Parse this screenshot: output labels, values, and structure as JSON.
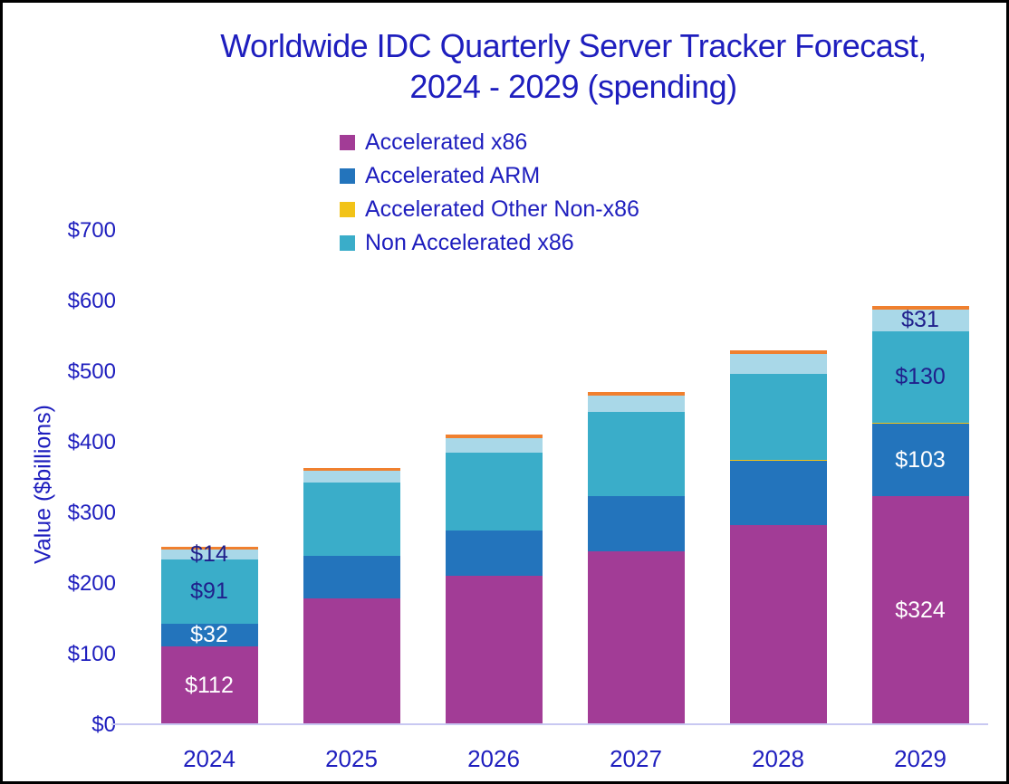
{
  "title": {
    "line1": "Worldwide IDC Quarterly Server Tracker Forecast,",
    "line2": "2024 - 2029 (spending)"
  },
  "colors": {
    "title_text": "#1E1EBE",
    "axis_text": "#1E1EBE",
    "in_bar_dark_label": "#20208C",
    "in_bar_light_label": "#FFFFFF",
    "axis_line": "#C8C8F2",
    "frame_border": "#000000",
    "background": "#FFFFFF"
  },
  "chart_data": {
    "type": "bar",
    "stacked": true,
    "title": "Worldwide IDC Quarterly Server Tracker Forecast, 2024 - 2029 (spending)",
    "xlabel": "",
    "ylabel": "Value ($billions)",
    "ylim": [
      0,
      700
    ],
    "y_ticks": [
      "$0",
      "$100",
      "$200",
      "$300",
      "$400",
      "$500",
      "$600",
      "$700"
    ],
    "grid": false,
    "legend_position": "top-left-under-title",
    "categories": [
      "2024",
      "2025",
      "2026",
      "2027",
      "2028",
      "2029"
    ],
    "legend": [
      {
        "label": "Accelerated x86",
        "color": "#A23C96"
      },
      {
        "label": "Accelerated ARM",
        "color": "#2374BC"
      },
      {
        "label": "Accelerated Other Non-x86",
        "color": "#F2C318"
      },
      {
        "label": "Non Accelerated x86",
        "color": "#3AADC9"
      }
    ],
    "series": [
      {
        "name": "Accelerated x86",
        "color": "#A23C96",
        "values": [
          112,
          180,
          211,
          246,
          283,
          324
        ],
        "data_labels": [
          "$112",
          null,
          null,
          null,
          null,
          "$324"
        ],
        "label_color": "#FFFFFF"
      },
      {
        "name": "Accelerated ARM",
        "color": "#2374BC",
        "values": [
          32,
          60,
          65,
          79,
          91,
          103
        ],
        "data_labels": [
          "$32",
          null,
          null,
          null,
          null,
          "$103"
        ],
        "label_color": "#FFFFFF"
      },
      {
        "name": "Accelerated Other Non-x86",
        "color": "#F2C318",
        "values": [
          0,
          0,
          0,
          0,
          2,
          1
        ],
        "data_labels": [
          null,
          null,
          null,
          null,
          null,
          null
        ],
        "label_color": "#FFFFFF"
      },
      {
        "name": "Non Accelerated x86",
        "color": "#3AADC9",
        "values": [
          91,
          104,
          110,
          119,
          122,
          130
        ],
        "data_labels": [
          "$91",
          null,
          null,
          null,
          null,
          "$130"
        ],
        "label_color": "#20208C"
      },
      {
        "name": "unlabeled-light-blue-segment",
        "color": "#A9D8E8",
        "values": [
          14,
          16,
          20,
          23,
          28,
          31
        ],
        "data_labels": [
          "$14",
          null,
          null,
          null,
          null,
          "$31"
        ],
        "label_color": "#20208C"
      },
      {
        "name": "unlabeled-orange-segment",
        "color": "#F0802F",
        "values": [
          4,
          4,
          5,
          5,
          5,
          5
        ],
        "data_labels": [
          null,
          null,
          null,
          null,
          null,
          null
        ],
        "label_color": "#FFFFFF"
      }
    ]
  }
}
